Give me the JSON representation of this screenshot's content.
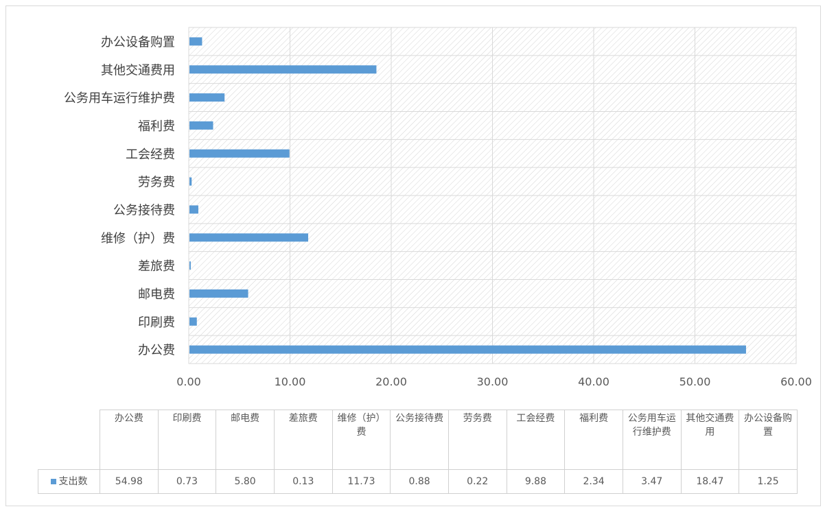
{
  "chart_data": {
    "type": "bar",
    "orientation": "horizontal",
    "categories": [
      "办公费",
      "印刷费",
      "邮电费",
      "差旅费",
      "维修（护）费",
      "公务接待费",
      "劳务费",
      "工会经费",
      "福利费",
      "公务用车运行维护费",
      "其他交通费用",
      "办公设备购置"
    ],
    "table_headers": [
      "办公费",
      "印刷费",
      "邮电费",
      "差旅费",
      "维修（护）费",
      "公务接待费",
      "劳务费",
      "工会经费",
      "福利费",
      "公务用车运行维护费",
      "其他交通费用",
      "办公设备购置"
    ],
    "series": [
      {
        "name": "支出数",
        "color": "#5b9bd5",
        "values": [
          54.98,
          0.73,
          5.8,
          0.13,
          11.73,
          0.88,
          0.22,
          9.88,
          2.34,
          3.47,
          18.47,
          1.25
        ],
        "value_labels": [
          "54.98",
          "0.73",
          "5.80",
          "0.13",
          "11.73",
          "0.88",
          "0.22",
          "9.88",
          "2.34",
          "3.47",
          "18.47",
          "1.25"
        ]
      }
    ],
    "xlim": [
      0,
      60
    ],
    "ticks": [
      0,
      10,
      20,
      30,
      40,
      50,
      60
    ],
    "tick_labels": [
      "0.00",
      "10.00",
      "20.00",
      "30.00",
      "40.00",
      "50.00",
      "60.00"
    ],
    "grid": true,
    "plot_fill": "hatched",
    "data_table": true,
    "legend": "in data table",
    "title": "",
    "xlabel": "",
    "ylabel": ""
  }
}
